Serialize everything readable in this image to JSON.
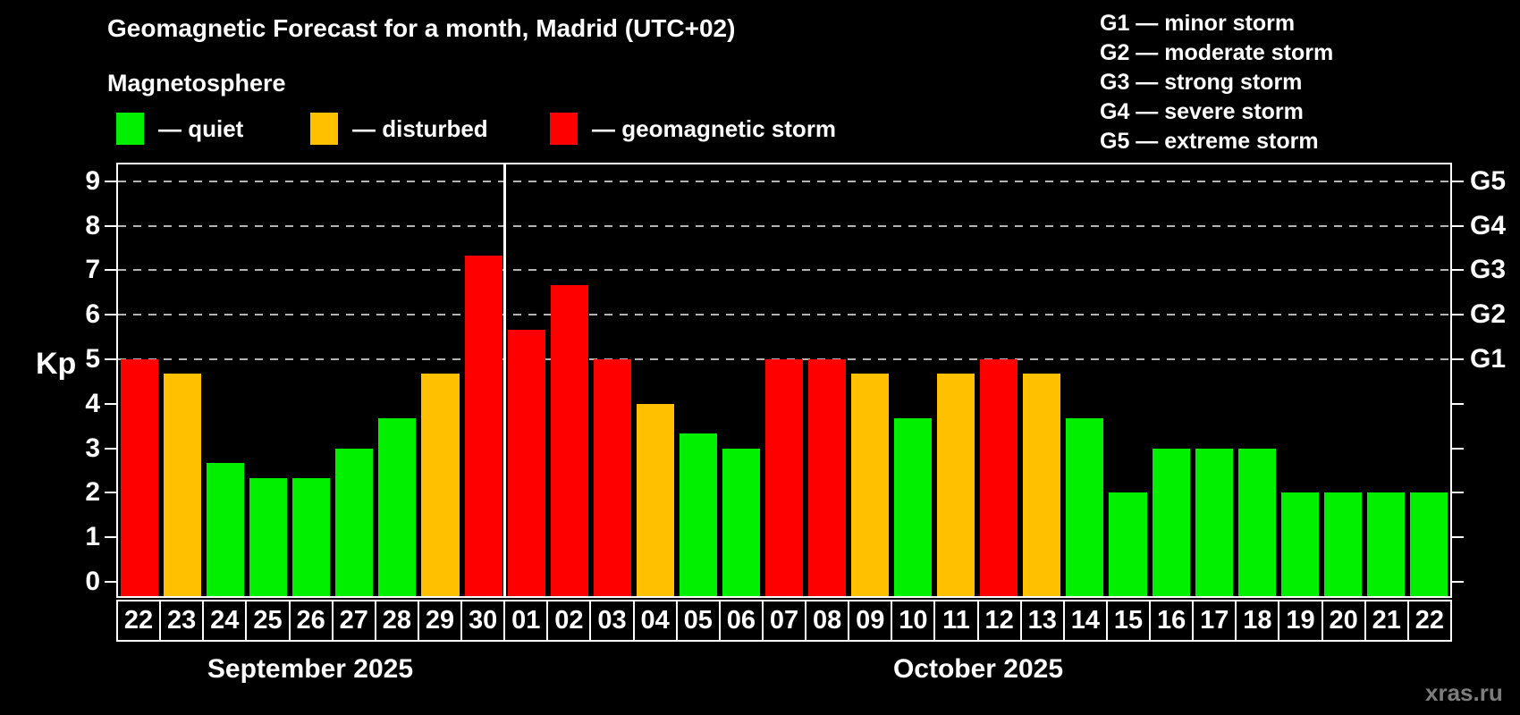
{
  "title": "Geomagnetic Forecast for a month, Madrid (UTC+02)",
  "subtitle": "Magnetosphere",
  "legend": [
    {
      "kind": "quiet",
      "label": "— quiet",
      "color": "#00f000"
    },
    {
      "kind": "disturbed",
      "label": "— disturbed",
      "color": "#ffc000"
    },
    {
      "kind": "storm",
      "label": "— geomagnetic storm",
      "color": "#ff0000"
    }
  ],
  "g_legend": [
    "G1 — minor storm",
    "G2 — moderate storm",
    "G3 — strong storm",
    "G4 — severe storm",
    "G5 — extreme storm"
  ],
  "watermark": "xras.ru",
  "chart_data": {
    "type": "bar",
    "title": "Geomagnetic Forecast for a month, Madrid (UTC+02)",
    "ylabel": "Kp",
    "ylim": [
      0,
      9
    ],
    "y_ticks": [
      0,
      1,
      2,
      3,
      4,
      5,
      6,
      7,
      8,
      9
    ],
    "gridlines": [
      5,
      6,
      7,
      8,
      9
    ],
    "grid_style": "dashed",
    "legend_position": "top",
    "right_axis_labels": [
      {
        "value": 5,
        "label": "G1"
      },
      {
        "value": 6,
        "label": "G2"
      },
      {
        "value": 7,
        "label": "G3"
      },
      {
        "value": 8,
        "label": "G4"
      },
      {
        "value": 9,
        "label": "G5"
      }
    ],
    "months": [
      {
        "label": "September 2025",
        "days": 9
      },
      {
        "label": "October 2025",
        "days": 22
      }
    ],
    "categories": [
      "22",
      "23",
      "24",
      "25",
      "26",
      "27",
      "28",
      "29",
      "30",
      "01",
      "02",
      "03",
      "04",
      "05",
      "06",
      "07",
      "08",
      "09",
      "10",
      "11",
      "12",
      "13",
      "14",
      "15",
      "16",
      "17",
      "18",
      "19",
      "20",
      "21",
      "22"
    ],
    "values": [
      5,
      4.67,
      2.67,
      2.33,
      2.33,
      3,
      3.67,
      4.67,
      7.33,
      5.67,
      6.67,
      5,
      4,
      3.33,
      3,
      5,
      5,
      4.67,
      3.67,
      4.67,
      5,
      4.67,
      3.67,
      2,
      3,
      3,
      3,
      2,
      2,
      2,
      2
    ],
    "statuses": [
      "storm",
      "disturbed",
      "quiet",
      "quiet",
      "quiet",
      "quiet",
      "quiet",
      "disturbed",
      "storm",
      "storm",
      "storm",
      "storm",
      "disturbed",
      "quiet",
      "quiet",
      "storm",
      "storm",
      "disturbed",
      "quiet",
      "disturbed",
      "storm",
      "disturbed",
      "quiet",
      "quiet",
      "quiet",
      "quiet",
      "quiet",
      "quiet",
      "quiet",
      "quiet",
      "quiet"
    ],
    "palette": {
      "quiet": "#00f000",
      "disturbed": "#ffc000",
      "storm": "#ff0000"
    }
  }
}
